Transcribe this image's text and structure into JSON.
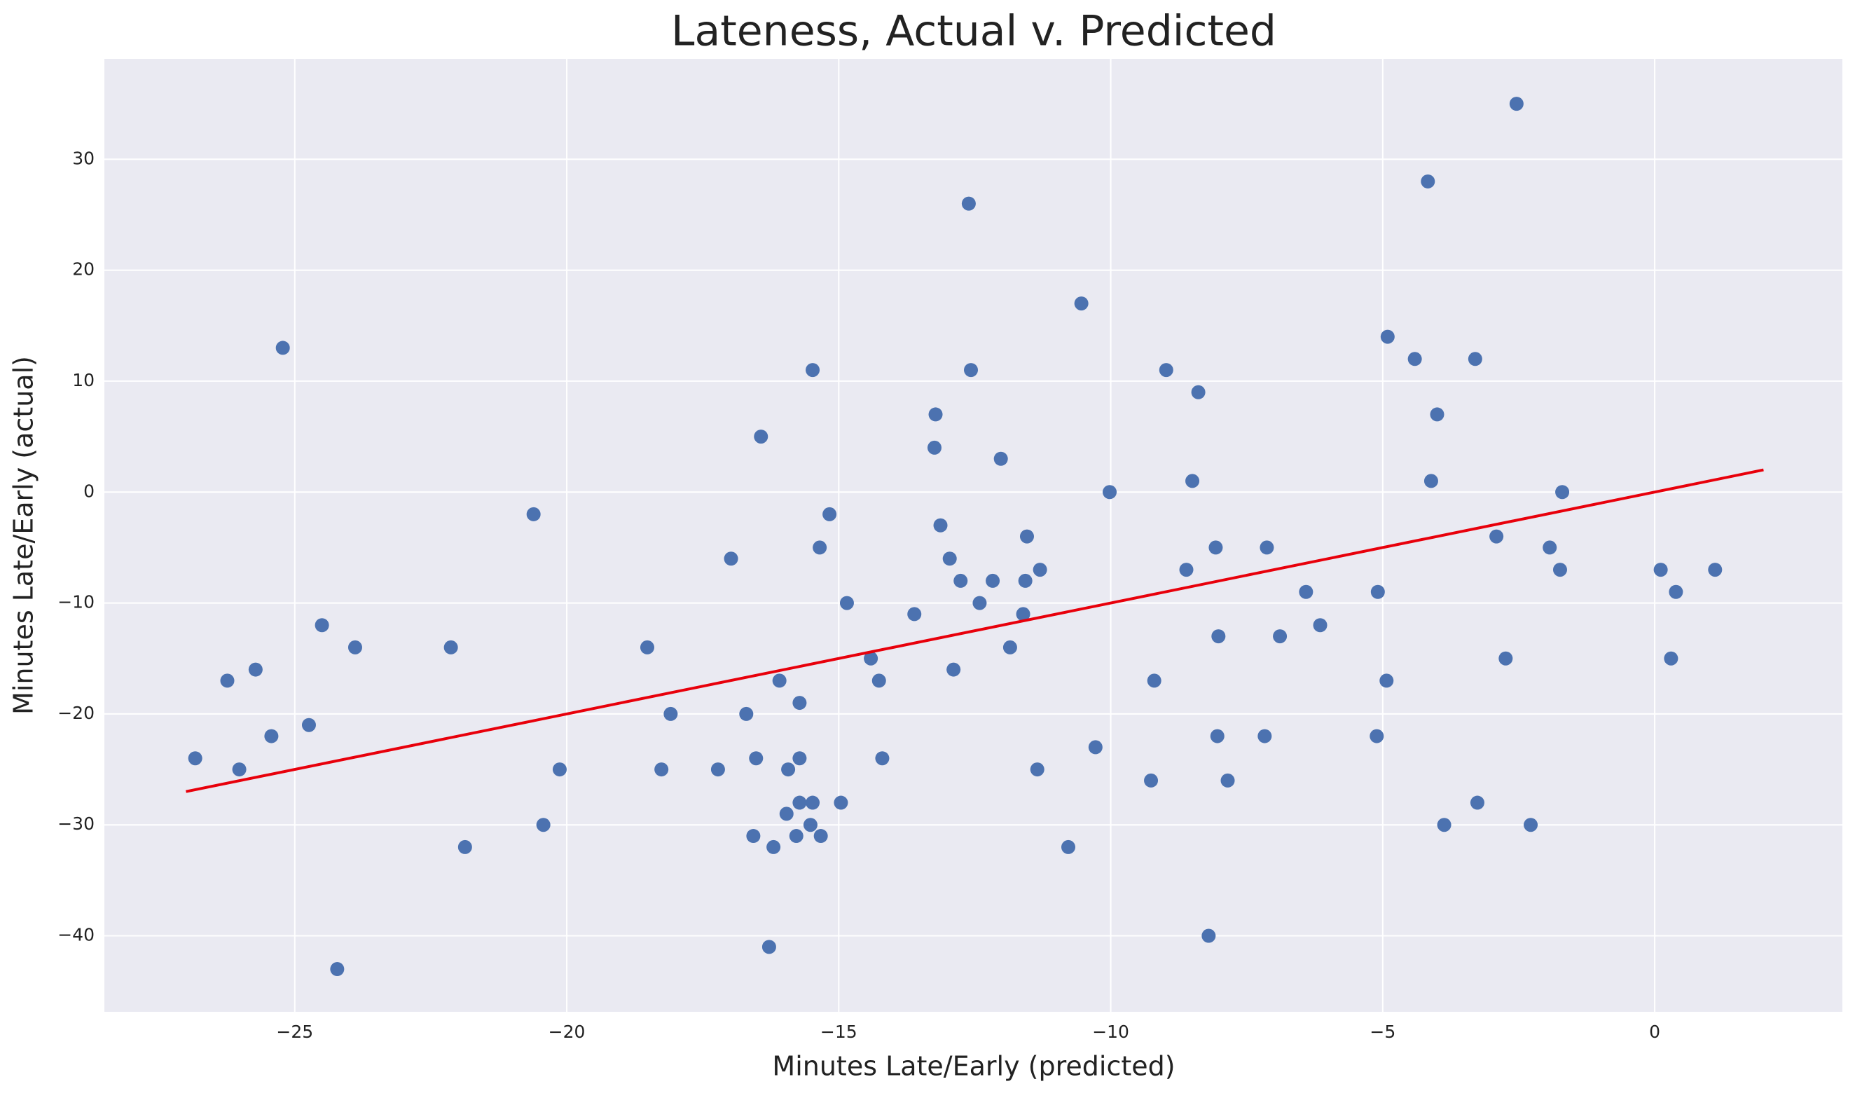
{
  "chart_data": {
    "type": "scatter",
    "title": "Lateness, Actual v. Predicted",
    "xlabel": "Minutes Late/Early (predicted)",
    "ylabel": "Minutes Late/Early (actual)",
    "x": [
      -26.83,
      -26.24,
      -26.02,
      -25.72,
      -25.43,
      -25.22,
      -24.74,
      -24.5,
      -24.22,
      -23.89,
      -22.13,
      -21.87,
      -20.61,
      -20.43,
      -20.13,
      -18.52,
      -18.26,
      -18.09,
      -17.22,
      -16.98,
      -16.7,
      -16.57,
      -16.52,
      -16.43,
      -16.28,
      -16.2,
      -16.09,
      -15.96,
      -15.93,
      -15.78,
      -15.72,
      -15.72,
      -15.72,
      -15.52,
      -15.48,
      -15.48,
      -15.35,
      -15.33,
      -15.17,
      -14.96,
      -14.85,
      -14.41,
      -14.26,
      -14.2,
      -13.61,
      -13.24,
      -13.22,
      -13.13,
      -12.96,
      -12.89,
      -12.76,
      -12.61,
      -12.57,
      -12.41,
      -12.17,
      -12.02,
      -11.85,
      -11.61,
      -11.57,
      -11.54,
      -11.35,
      -11.3,
      -10.78,
      -10.54,
      -10.28,
      -10.02,
      -9.26,
      -9.2,
      -8.98,
      -8.61,
      -8.5,
      -8.39,
      -8.2,
      -8.07,
      -8.04,
      -8.02,
      -7.85,
      -7.17,
      -7.13,
      -6.89,
      -6.41,
      -6.15,
      -5.11,
      -5.09,
      -4.93,
      -4.91,
      -4.41,
      -4.17,
      -4.11,
      -4.0,
      -3.87,
      -3.3,
      -3.26,
      -2.91,
      -2.74,
      -2.54,
      -2.28,
      -1.93,
      -1.74,
      -1.7,
      0.11,
      0.3,
      0.39,
      1.11
    ],
    "y": [
      -24,
      -17,
      -25,
      -16,
      -22,
      13,
      -21,
      -12,
      -43,
      -14,
      -14,
      -32,
      -2,
      -30,
      -25,
      -14,
      -25,
      -20,
      -25,
      -6,
      -20,
      -31,
      -24,
      5,
      -41,
      -32,
      -17,
      -29,
      -25,
      -31,
      -28,
      -19,
      -24,
      -30,
      11,
      -28,
      -5,
      -31,
      -2,
      -28,
      -10,
      -15,
      -17,
      -24,
      -11,
      4,
      7,
      -3,
      -6,
      -16,
      -8,
      26,
      11,
      -10,
      -8,
      3,
      -14,
      -11,
      -8,
      -4,
      -25,
      -7,
      -32,
      17,
      -23,
      0,
      -26,
      -17,
      11,
      -7,
      1,
      9,
      -40,
      -5,
      -22,
      -13,
      -26,
      -22,
      -5,
      -13,
      -9,
      -12,
      -22,
      -9,
      -17,
      14,
      12,
      28,
      1,
      7,
      -30,
      12,
      -28,
      -4,
      -15,
      35,
      -30,
      -5,
      -7,
      0,
      -7,
      -15,
      -9,
      -7
    ],
    "color": "#4c72b0",
    "fit_line": {
      "x": [
        -27,
        2
      ],
      "y": [
        -27,
        2
      ],
      "color": "#e8000b"
    },
    "xlim": [
      -28.5,
      3.45
    ],
    "ylim": [
      -46.85,
      39.05
    ],
    "xticks": [
      {
        "value": -25,
        "label": "−25"
      },
      {
        "value": -20,
        "label": "−20"
      },
      {
        "value": -15,
        "label": "−15"
      },
      {
        "value": -10,
        "label": "−10"
      },
      {
        "value": -5,
        "label": "−5"
      },
      0
    ],
    "yticks": [
      {
        "value": -40,
        "label": "−40"
      },
      {
        "value": -30,
        "label": "−30"
      },
      {
        "value": -20,
        "label": "−20"
      },
      {
        "value": -10,
        "label": "−10"
      },
      0,
      10,
      20,
      30
    ],
    "grid": true
  }
}
